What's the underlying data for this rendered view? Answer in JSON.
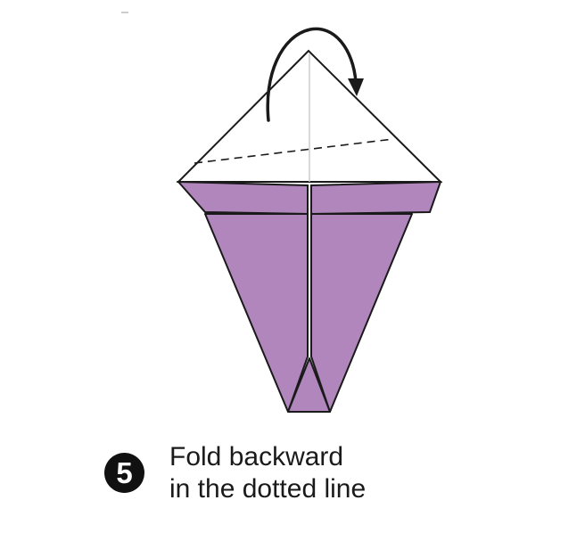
{
  "step": {
    "number": "5",
    "instruction_line1": "Fold backward",
    "instruction_line2": "in the dotted line"
  },
  "colors": {
    "paper_front": "#ffffff",
    "paper_back": "#b086bc",
    "outline": "#1a1a1a",
    "center_crease": "#cccccc",
    "badge": "#111111"
  },
  "icons": {
    "fold_arrow": "curved-arrow-clockwise"
  }
}
